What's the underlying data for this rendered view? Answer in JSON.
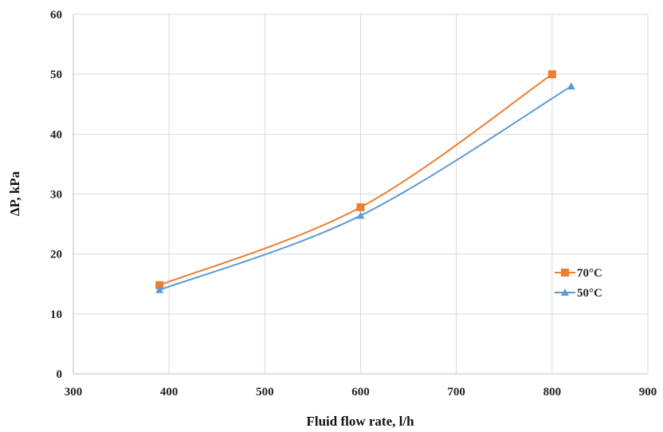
{
  "chart_data": {
    "type": "line",
    "xlabel": "Fluid flow rate, l/h",
    "ylabel": "ΔP, kPa",
    "xlim": [
      300,
      900
    ],
    "ylim": [
      0,
      60
    ],
    "xticks": [
      300,
      400,
      500,
      600,
      700,
      800,
      900
    ],
    "yticks": [
      0,
      10,
      20,
      30,
      40,
      50,
      60
    ],
    "grid": true,
    "legend_position": "right",
    "series": [
      {
        "name": "70°C",
        "marker": "square",
        "color": "#ED7D31",
        "points": [
          {
            "x": 390,
            "y": 14.8
          },
          {
            "x": 600,
            "y": 27.8
          },
          {
            "x": 800,
            "y": 50.0
          }
        ]
      },
      {
        "name": "50°C",
        "marker": "triangle",
        "color": "#5B9BD5",
        "points": [
          {
            "x": 390,
            "y": 14.0
          },
          {
            "x": 600,
            "y": 26.4
          },
          {
            "x": 820,
            "y": 48.0
          }
        ]
      }
    ]
  }
}
